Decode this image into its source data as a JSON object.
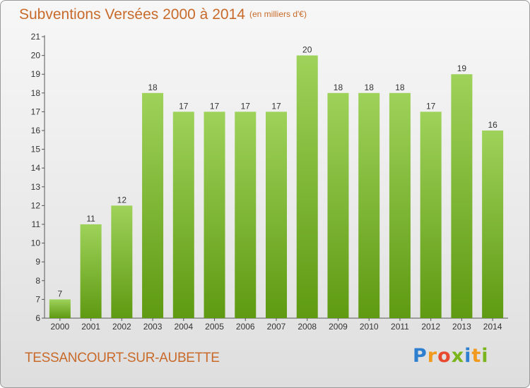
{
  "chart_data": {
    "type": "bar",
    "title": "Subventions Versées 2000 à 2014",
    "subtitle": "(en milliers d'€)",
    "categories": [
      "2000",
      "2001",
      "2002",
      "2003",
      "2004",
      "2005",
      "2006",
      "2007",
      "2008",
      "2009",
      "2010",
      "2011",
      "2012",
      "2013",
      "2014"
    ],
    "values": [
      7,
      11,
      12,
      18,
      17,
      17,
      17,
      17,
      20,
      18,
      18,
      18,
      17,
      19,
      16
    ],
    "ylim": [
      6,
      21
    ],
    "yticks": [
      6,
      7,
      8,
      9,
      10,
      11,
      12,
      13,
      14,
      15,
      16,
      17,
      18,
      19,
      20,
      21
    ],
    "grid": false,
    "xlabel": "",
    "ylabel": ""
  },
  "commune": "TESSANCOURT-SUR-AUBETTE",
  "logo": "Proxiti",
  "colors": {
    "bar_light": "#9ed25a",
    "bar_dark": "#5f9a12",
    "title": "#c86a2a"
  }
}
